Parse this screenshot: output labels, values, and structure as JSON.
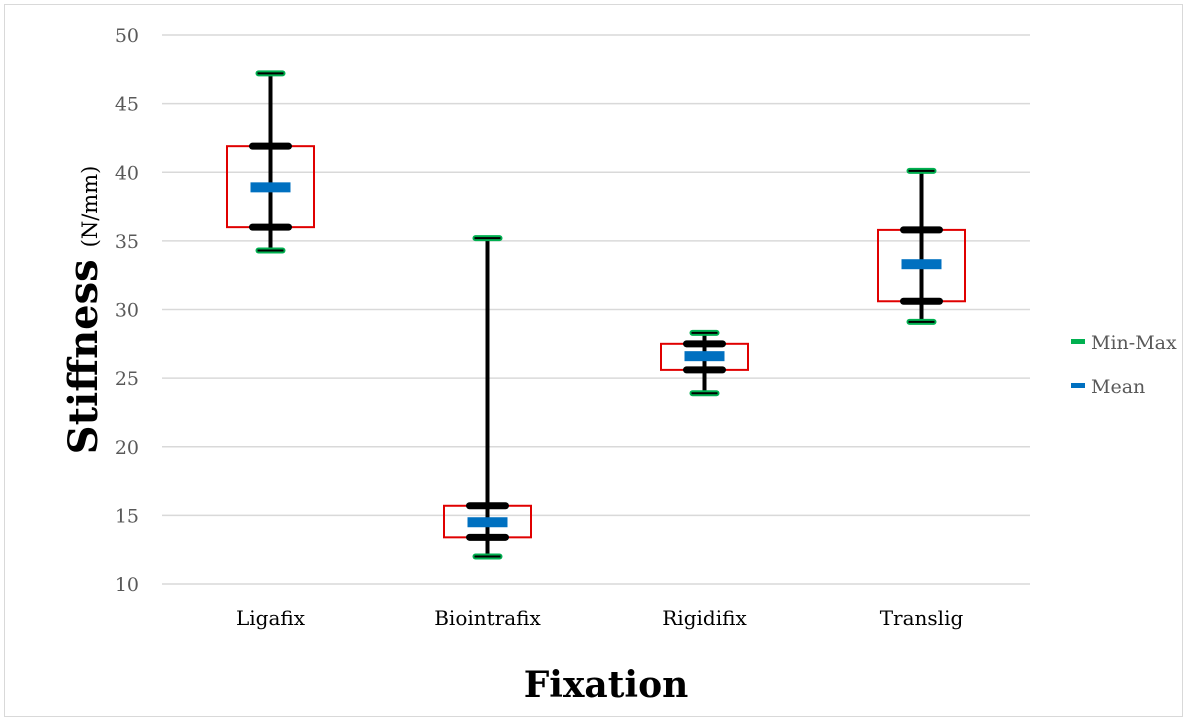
{
  "chart_data": {
    "type": "box",
    "categories": [
      "Ligafix",
      "Biointrafix",
      "Rigidifix",
      "Translig"
    ],
    "series": [
      {
        "name": "Min-Max",
        "min": [
          34.3,
          12.0,
          23.9,
          29.1
        ],
        "max": [
          47.2,
          35.2,
          28.3,
          40.1
        ],
        "color": "#00b050"
      },
      {
        "name": "Mean",
        "values": [
          38.9,
          14.5,
          26.6,
          33.3
        ],
        "color": "#0070c0"
      }
    ],
    "box_lower": [
      36.0,
      13.4,
      25.6,
      30.6
    ],
    "box_upper": [
      41.9,
      15.7,
      27.5,
      35.8
    ],
    "box_color": "#e00000",
    "ylim": [
      10,
      50
    ],
    "yticks": [
      "10",
      "15",
      "20",
      "25",
      "30",
      "35",
      "40",
      "45",
      "50"
    ],
    "ylabel_main": "Stiffness",
    "ylabel_unit": "(N/mm)",
    "xlabel": "Fixation",
    "grid": true,
    "legend_position": "right"
  }
}
